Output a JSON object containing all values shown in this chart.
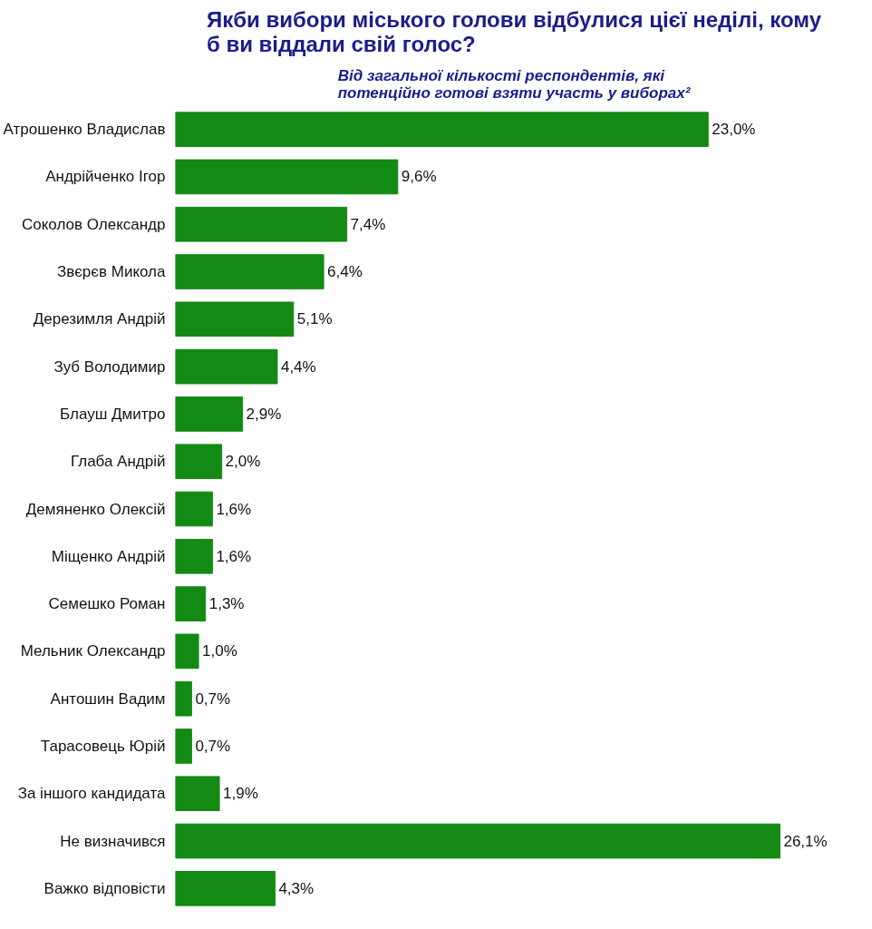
{
  "chart_data": {
    "type": "bar",
    "orientation": "horizontal",
    "title": "Якби вибори міського голови відбулися цієї неділі, кому б ви віддали свій голос?",
    "subtitle": "Від загальної кількості респондентів, які потенційно готові взяти участь у виборах²",
    "categories": [
      "Атрошенко Владислав",
      "Андрійченко Ігор",
      "Соколов Олександр",
      "Звєрєв Микола",
      "Дерезимля Андрій",
      "Зуб Володимир",
      "Блауш Дмитро",
      "Глаба Андрій",
      "Демяненко Олексій",
      "Міщенко Андрій",
      "Семешко Роман",
      "Мельник Олександр",
      "Антошин Вадим",
      "Тарасовець Юрій",
      "За іншого кандидата",
      "Не визначився",
      "Важко відповісти"
    ],
    "values": [
      23.0,
      9.6,
      7.4,
      6.4,
      5.1,
      4.4,
      2.9,
      2.0,
      1.6,
      1.6,
      1.3,
      1.0,
      0.7,
      0.7,
      1.9,
      26.1,
      4.3
    ],
    "value_labels": [
      "23,0%",
      "9,6%",
      "7,4%",
      "6,4%",
      "5,1%",
      "4,4%",
      "2,9%",
      "2,0%",
      "1,6%",
      "1,6%",
      "1,3%",
      "1,0%",
      "0,7%",
      "0,7%",
      "1,9%",
      "26,1%",
      "4,3%"
    ],
    "color": "#138a13",
    "grid": false
  }
}
